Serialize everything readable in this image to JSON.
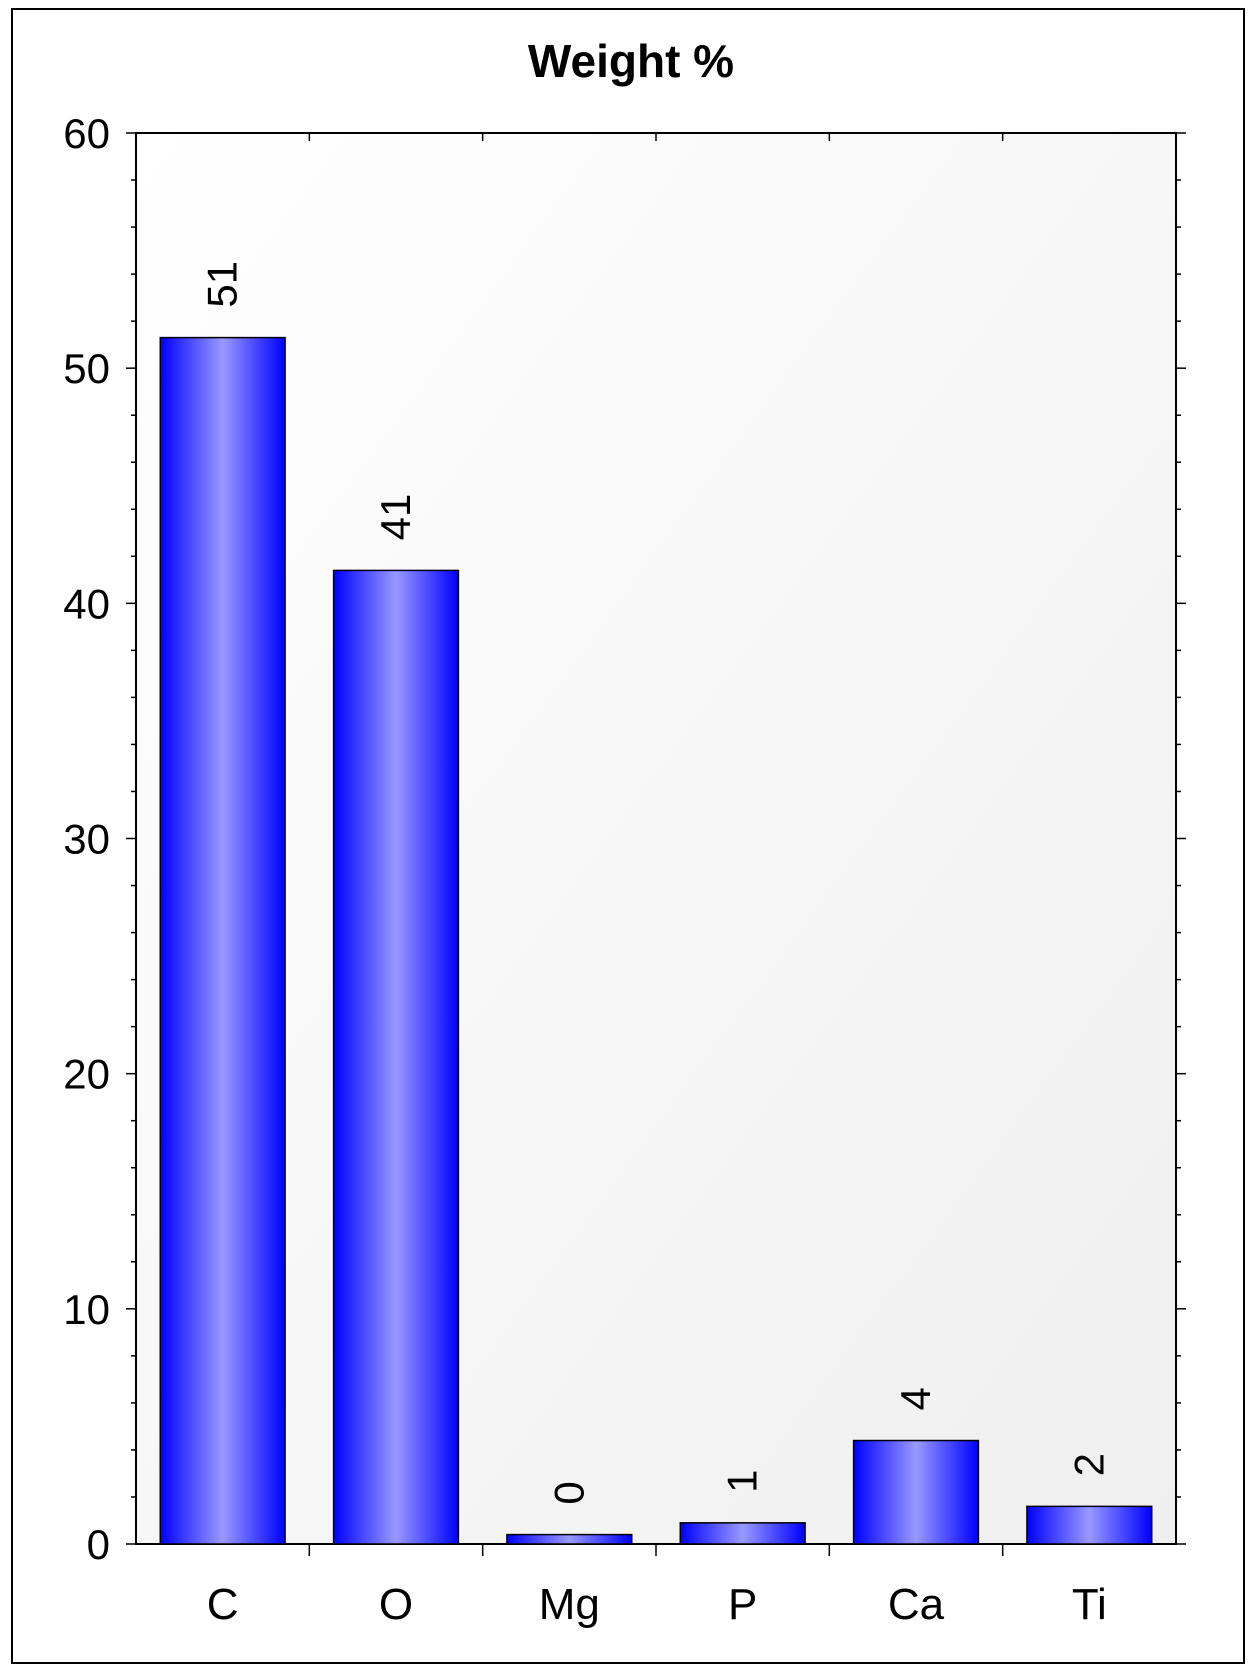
{
  "chart_data": {
    "type": "bar",
    "title": "Weight %",
    "xlabel": "",
    "ylabel": "",
    "categories": [
      "C",
      "O",
      "Mg",
      "P",
      "Ca",
      "Ti"
    ],
    "values": [
      51.3,
      41.4,
      0.4,
      0.9,
      4.4,
      1.6
    ],
    "data_labels": [
      "51",
      "41",
      "0",
      "1",
      "4",
      "2"
    ],
    "ylim": [
      0,
      60
    ],
    "yticks": [
      "0",
      "10",
      "20",
      "30",
      "40",
      "50",
      "60"
    ],
    "grid": false,
    "legend": "none",
    "colors": {
      "bar_edge": "#0000ff",
      "bar_center": "#9999ff",
      "plot_bg_light": "#ffffff",
      "plot_bg_dark": "#efefef"
    }
  }
}
